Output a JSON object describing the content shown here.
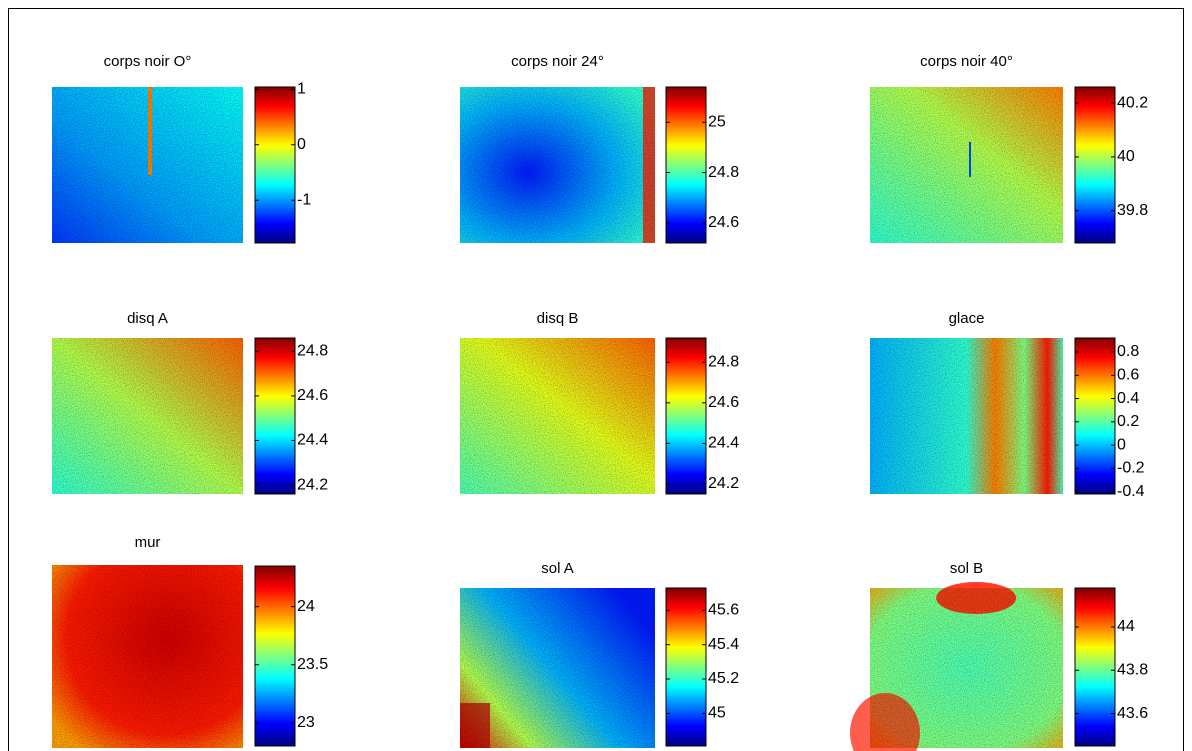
{
  "chart_data": [
    {
      "type": "heatmap",
      "title": "corps noir O°",
      "clim": [
        -1.77,
        1.04
      ],
      "cticks": [
        -1,
        0,
        1
      ]
    },
    {
      "type": "heatmap",
      "title": "corps noir 24°",
      "clim": [
        24.52,
        25.14
      ],
      "cticks": [
        24.6,
        24.8,
        25
      ]
    },
    {
      "type": "heatmap",
      "title": "corps noir 40°",
      "clim": [
        39.68,
        40.26
      ],
      "cticks": [
        39.8,
        40,
        40.2
      ]
    },
    {
      "type": "heatmap",
      "title": "disq A",
      "clim": [
        24.16,
        24.86
      ],
      "cticks": [
        24.2,
        24.4,
        24.6,
        24.8
      ]
    },
    {
      "type": "heatmap",
      "title": "disq B",
      "clim": [
        24.15,
        24.92
      ],
      "cticks": [
        24.2,
        24.4,
        24.6,
        24.8
      ]
    },
    {
      "type": "heatmap",
      "title": "glace",
      "clim": [
        -0.42,
        0.92
      ],
      "cticks": [
        -0.4,
        -0.2,
        0,
        0.2,
        0.4,
        0.6,
        0.8
      ]
    },
    {
      "type": "heatmap",
      "title": "mur",
      "clim": [
        22.8,
        24.35
      ],
      "cticks": [
        23,
        23.5,
        24
      ]
    },
    {
      "type": "heatmap",
      "title": "sol A",
      "clim": [
        44.81,
        45.73
      ],
      "cticks": [
        45,
        45.2,
        45.4,
        45.6
      ]
    },
    {
      "type": "heatmap",
      "title": "sol B",
      "clim": [
        43.45,
        44.18
      ],
      "cticks": [
        43.6,
        43.8,
        44
      ]
    }
  ]
}
